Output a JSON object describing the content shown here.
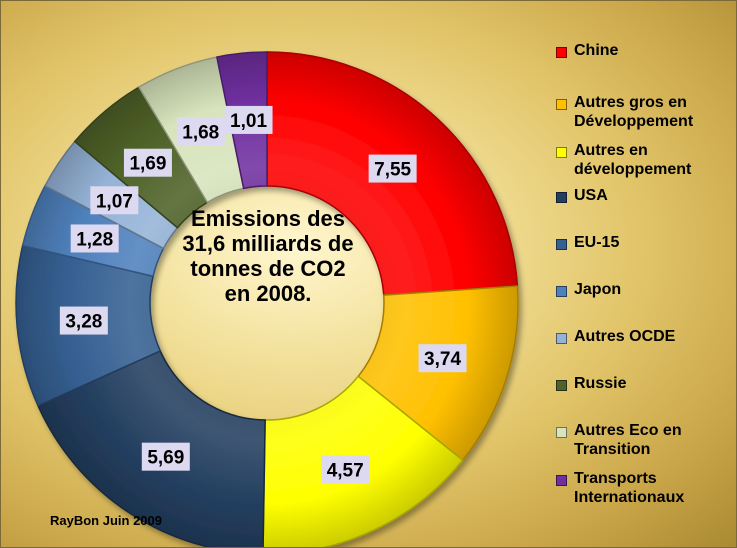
{
  "chart_data": {
    "type": "pie",
    "subtype": "donut",
    "center_text": [
      "Emissions des",
      "31,6 milliards de",
      "tonnes de  CO2",
      "en 2008."
    ],
    "slices": [
      {
        "name": "Chine",
        "label": "7,55",
        "value": 7.55,
        "color": "#ff0000"
      },
      {
        "name": "Autres gros en Développement",
        "label": "3,74",
        "value": 3.74,
        "color": "#ffc000"
      },
      {
        "name": "Autres en développement",
        "label": "4,57",
        "value": 4.57,
        "color": "#ffff00"
      },
      {
        "name": "USA",
        "label": "5,69",
        "value": 5.69,
        "color": "#243f60"
      },
      {
        "name": "EU-15",
        "label": "3,28",
        "value": 3.28,
        "color": "#366092"
      },
      {
        "name": "Japon",
        "label": "1,28",
        "value": 1.28,
        "color": "#4f81bd"
      },
      {
        "name": "Autres OCDE",
        "label": "1,07",
        "value": 1.07,
        "color": "#95b3d7"
      },
      {
        "name": "Russie",
        "label": "1,69",
        "value": 1.69,
        "color": "#4f6228"
      },
      {
        "name": "Autres Eco en Transition",
        "label": "1,68",
        "value": 1.68,
        "color": "#d7e4bc"
      },
      {
        "name": "Transports Internationaux",
        "label": "1,01",
        "value": 1.01,
        "color": "#7030a0"
      }
    ],
    "legend_position": "right"
  },
  "legend": [
    {
      "line1": "Chine",
      "line2": ""
    },
    {
      "line1": "Autres gros en",
      "line2": "Développement"
    },
    {
      "line1": "Autres en",
      "line2": "développement"
    },
    {
      "line1": "USA",
      "line2": ""
    },
    {
      "line1": "EU-15",
      "line2": ""
    },
    {
      "line1": "Japon",
      "line2": ""
    },
    {
      "line1": "Autres OCDE",
      "line2": ""
    },
    {
      "line1": "Russie",
      "line2": ""
    },
    {
      "line1": "Autres Eco en",
      "line2": "Transition"
    },
    {
      "line1": "Transports",
      "line2": "Internationaux"
    }
  ],
  "credit": "RayBon Juin 2009"
}
